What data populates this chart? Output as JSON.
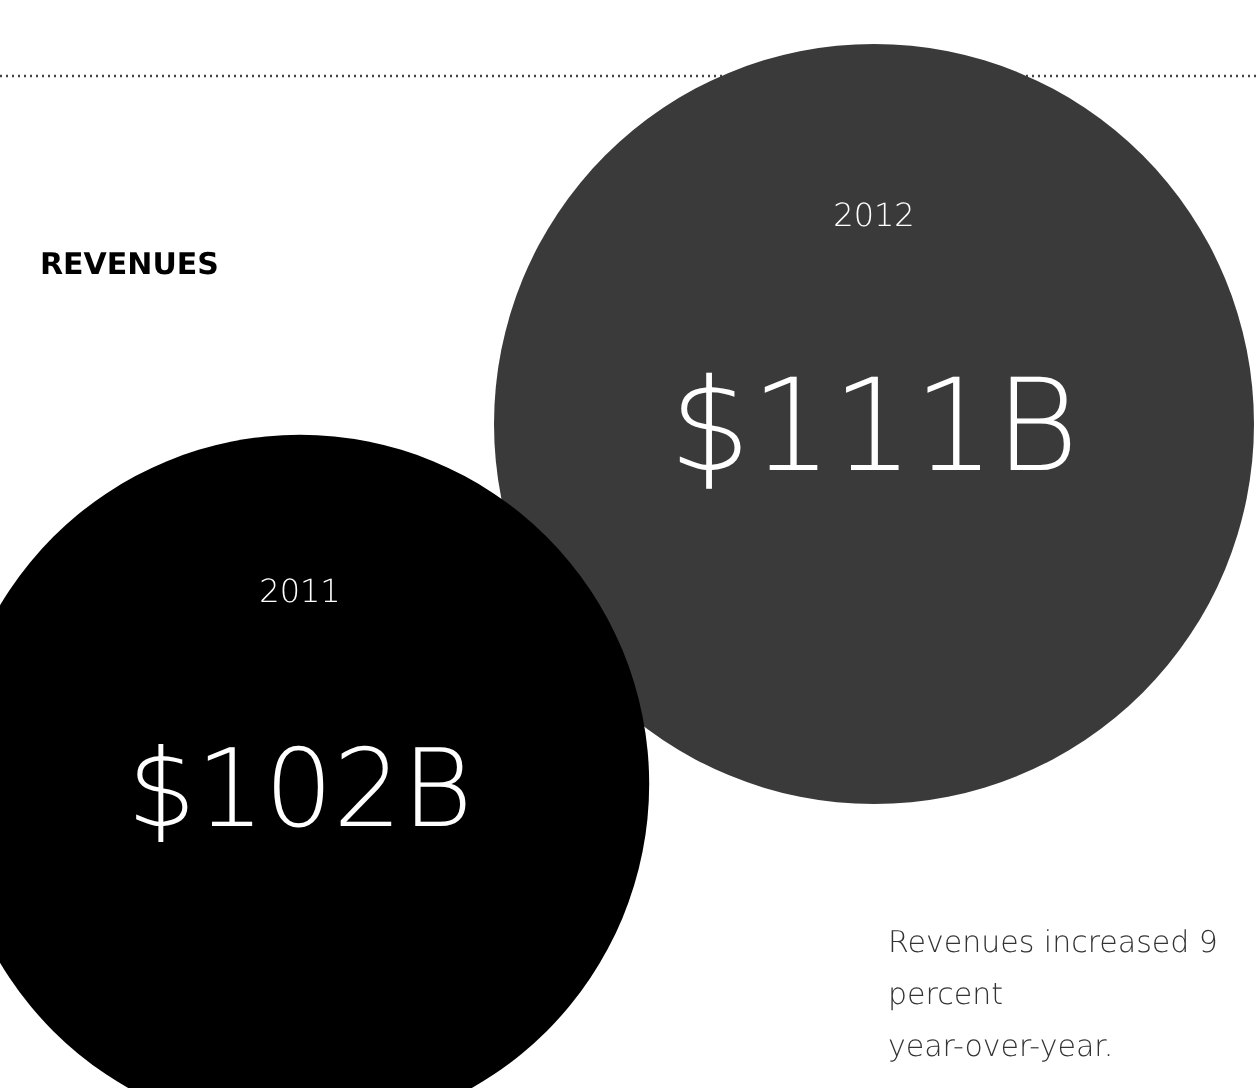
{
  "chart_data": {
    "type": "other",
    "title": "REVENUES",
    "categories": [
      "2011",
      "2012"
    ],
    "values": [
      102,
      111
    ],
    "value_labels": [
      "$102B",
      "$111B"
    ],
    "colors": [
      "#000000",
      "#3a3a3a"
    ],
    "annotations": [
      "Revenues increased 9 percent year-over-year."
    ]
  }
}
